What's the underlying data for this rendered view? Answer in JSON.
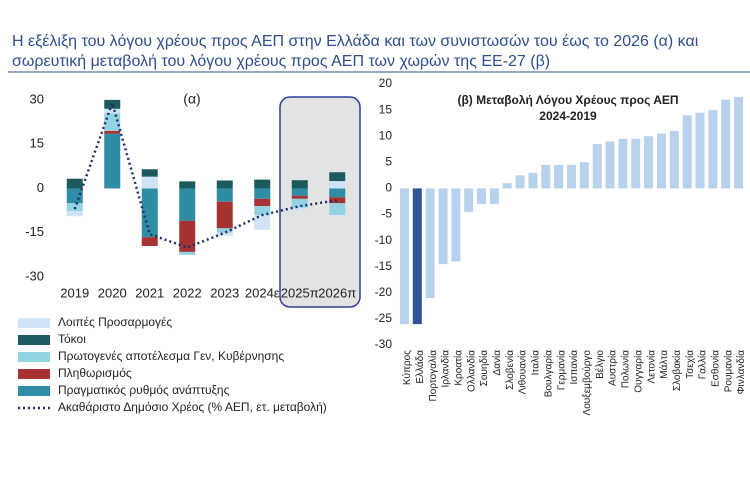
{
  "header": {
    "lines": [
      "Η εξέλιξη του λόγου χρέους προς ΑΕΠ στην Ελλάδα και των συνιστωσών του έως το 2026 (α) και",
      "σωρευτική μεταβολή του λόγου χρέους προς ΑΕΠ των χωρών της ΕΕ-27 (β)"
    ]
  },
  "chart_data": [
    {
      "type": "stacked_bar_line",
      "title": "(α)",
      "categories": [
        "2019",
        "2020",
        "2021",
        "2022",
        "2023",
        "2024ε",
        "2025π",
        "2026π"
      ],
      "series": [
        {
          "name": "Λοιπές Προσαρμογές",
          "color": "#cfe3f4",
          "values": [
            -1.7,
            1.5,
            4,
            0,
            -1,
            -5,
            -1,
            2.5
          ]
        },
        {
          "name": "Τόκοι",
          "color": "#1d5a5e",
          "values": [
            3.3,
            3,
            2.5,
            2.4,
            2.7,
            3,
            2.8,
            3
          ]
        },
        {
          "name": "Πρωτογενές αποτέλεσμα Γεν, Κυβέρνησης",
          "color": "#92d2e2",
          "values": [
            -2.7,
            6,
            0,
            -1,
            -1.5,
            -3,
            -3,
            -4
          ]
        },
        {
          "name": "Πληθωρισμός",
          "color": "#a63232",
          "values": [
            0,
            1,
            -3,
            -10.5,
            -9,
            -2.5,
            -1,
            -2
          ]
        },
        {
          "name": "Πραγματικός ρυθμός ανάπτυξης",
          "color": "#2e8ca5",
          "values": [
            -5,
            18.5,
            -16.5,
            -11,
            -4.5,
            -3.5,
            -2.5,
            -3
          ]
        },
        {
          "name": "Ακαθάριστο Δημόσιο Χρέος (% ΑΕΠ, ετ. μεταβολή)",
          "color": "#1f2d6b",
          "type": "line",
          "values": [
            -7,
            29,
            -15.5,
            -20,
            -15,
            -9,
            -6,
            -4
          ]
        }
      ],
      "ylim": [
        -30,
        32
      ],
      "yticks": [
        -30,
        -15,
        0,
        15,
        30
      ]
    },
    {
      "type": "bar",
      "title": "(β) Μεταβολή Λόγου Χρέους προς ΑΕΠ",
      "subtitle": "2024-2019",
      "categories": [
        "Κύπρος",
        "Ελλάδα",
        "Πορτογαλία",
        "Ιρλανδία",
        "Κροατία",
        "Ολλανδία",
        "Σουηδία",
        "Δανία",
        "Σλοβενία",
        "Λιθουανία",
        "Ιταλία",
        "Βουλγαρία",
        "Γερμανία",
        "Ισπανία",
        "Λουξεμβούργο",
        "Βέλγιο",
        "Αυστρία",
        "Πολωνία",
        "Ουγγαρία",
        "Λετονία",
        "Μάλτα",
        "Σλοβακία",
        "Τσεχία",
        "Γαλλία",
        "Εσθονία",
        "Ρουμανία",
        "Φινλανδία"
      ],
      "values": [
        -26,
        -26,
        -21,
        -14.5,
        -14,
        -4.5,
        -3,
        -3,
        1,
        2.5,
        3,
        4.5,
        4.5,
        4.5,
        5,
        8.5,
        9,
        9.5,
        9.5,
        10,
        10.5,
        11,
        14,
        14.5,
        15,
        17,
        17.5
      ],
      "color": "#b8d1ec",
      "highlight_color": "#2f5597",
      "highlight": "Ελλάδα",
      "ylim": [
        -30,
        20
      ],
      "yticks": [
        -30,
        -25,
        -20,
        -15,
        -10,
        -5,
        0,
        5,
        10,
        15,
        20
      ]
    }
  ]
}
